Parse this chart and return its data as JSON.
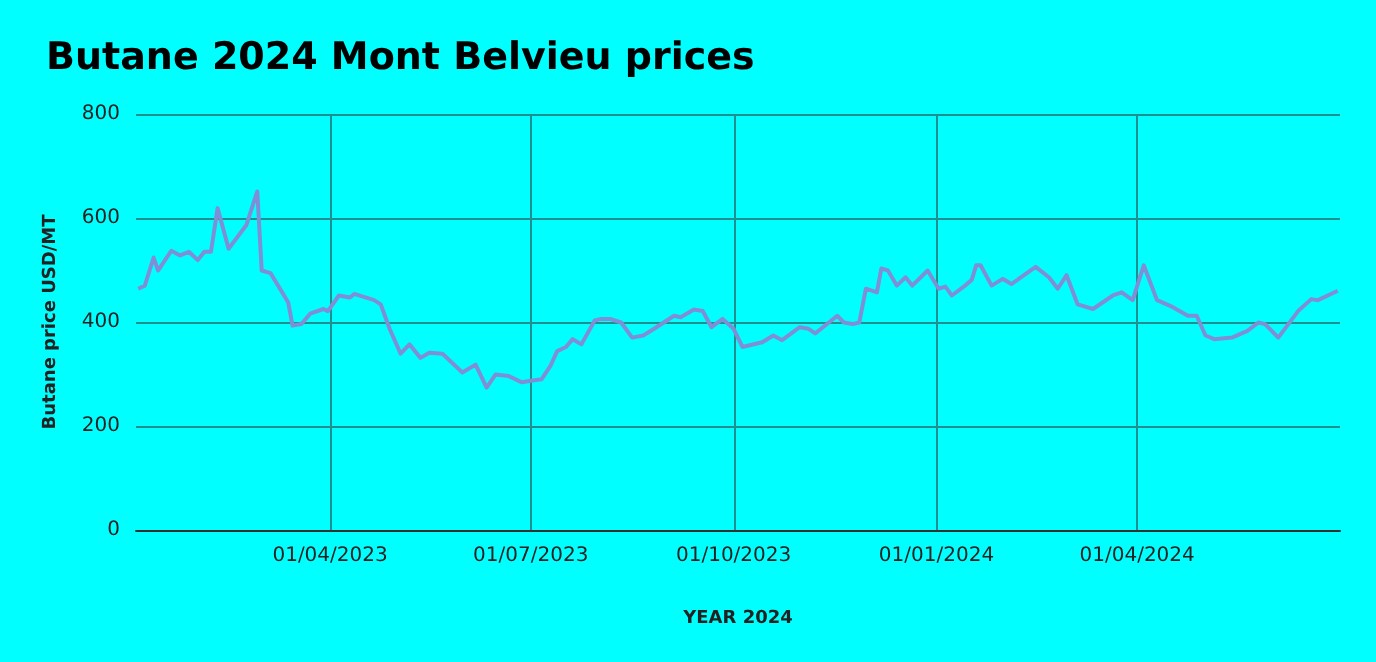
{
  "chart_data": {
    "type": "line",
    "title": "Butane 2024 Mont Belvieu prices",
    "xlabel": "YEAR 2024",
    "ylabel": "Butane price USD/MT",
    "xlim": [
      "2023-01-03",
      "2024-07-02"
    ],
    "xticks": [
      {
        "value": "2023-04-01",
        "label": "01/04/2023"
      },
      {
        "value": "2023-07-01",
        "label": "01/07/2023"
      },
      {
        "value": "2023-10-01",
        "label": "01/10/2023"
      },
      {
        "value": "2024-01-01",
        "label": "01/01/2024"
      },
      {
        "value": "2024-04-01",
        "label": "01/04/2024"
      }
    ],
    "ylim": [
      0,
      800
    ],
    "yticks": [
      0,
      200,
      400,
      600,
      800
    ],
    "grid": true,
    "marker": "none",
    "line_style": "solid",
    "x": [
      "2023-01-04",
      "2023-01-07",
      "2023-01-11",
      "2023-01-13",
      "2023-01-19",
      "2023-01-23",
      "2023-01-27",
      "2023-01-31",
      "2023-02-03",
      "2023-02-06",
      "2023-02-09",
      "2023-02-14",
      "2023-02-22",
      "2023-02-27",
      "2023-03-01",
      "2023-03-05",
      "2023-03-13",
      "2023-03-15",
      "2023-03-19",
      "2023-03-23",
      "2023-03-29",
      "2023-03-31",
      "2023-04-05",
      "2023-04-10",
      "2023-04-12",
      "2023-04-21",
      "2023-04-24",
      "2023-04-28",
      "2023-05-03",
      "2023-05-07",
      "2023-05-12",
      "2023-05-16",
      "2023-05-22",
      "2023-05-31",
      "2023-06-06",
      "2023-06-11",
      "2023-06-15",
      "2023-06-21",
      "2023-06-27",
      "2023-07-01",
      "2023-07-06",
      "2023-07-10",
      "2023-07-13",
      "2023-07-17",
      "2023-07-20",
      "2023-07-24",
      "2023-07-30",
      "2023-08-02",
      "2023-08-06",
      "2023-08-11",
      "2023-08-16",
      "2023-08-21",
      "2023-08-26",
      "2023-09-04",
      "2023-09-07",
      "2023-09-13",
      "2023-09-17",
      "2023-09-21",
      "2023-09-26",
      "2023-10-01",
      "2023-10-05",
      "2023-10-14",
      "2023-10-19",
      "2023-10-23",
      "2023-10-31",
      "2023-11-04",
      "2023-11-07",
      "2023-11-17",
      "2023-11-20",
      "2023-11-24",
      "2023-11-27",
      "2023-11-30",
      "2023-12-05",
      "2023-12-07",
      "2023-12-10",
      "2023-12-14",
      "2023-12-18",
      "2023-12-21",
      "2023-12-28",
      "2024-01-02",
      "2024-01-05",
      "2024-01-08",
      "2024-01-14",
      "2024-01-17",
      "2024-01-19",
      "2024-01-21",
      "2024-01-26",
      "2024-01-31",
      "2024-02-04",
      "2024-02-15",
      "2024-02-21",
      "2024-02-25",
      "2024-02-29",
      "2024-03-05",
      "2024-03-12",
      "2024-03-21",
      "2024-03-25",
      "2024-03-30",
      "2024-04-04",
      "2024-04-10",
      "2024-04-17",
      "2024-04-24",
      "2024-04-28",
      "2024-05-02",
      "2024-05-06",
      "2024-05-14",
      "2024-05-21",
      "2024-05-26",
      "2024-05-29",
      "2024-06-04",
      "2024-06-13",
      "2024-06-19",
      "2024-06-22",
      "2024-07-01"
    ],
    "series": [
      {
        "color": "#7f8fd6",
        "values": [
          464,
          470,
          524,
          499,
          537,
          528,
          535,
          519,
          535,
          535,
          619,
          541,
          586,
          651,
          499,
          494,
          438,
          393,
          396,
          416,
          425,
          421,
          451,
          447,
          454,
          442,
          434,
          387,
          339,
          357,
          331,
          341,
          339,
          303,
          318,
          274,
          299,
          296,
          284,
          287,
          290,
          316,
          344,
          352,
          367,
          357,
          403,
          406,
          406,
          399,
          370,
          374,
          387,
          412,
          409,
          424,
          421,
          390,
          406,
          387,
          352,
          361,
          374,
          365,
          390,
          387,
          378,
          412,
          399,
          396,
          399,
          464,
          457,
          503,
          499,
          470,
          486,
          470,
          499,
          464,
          468,
          451,
          470,
          481,
          509,
          509,
          470,
          483,
          473,
          506,
          486,
          464,
          490,
          434,
          425,
          451,
          457,
          442,
          509,
          442,
          429,
          412,
          412,
          374,
          367,
          370,
          383,
          399,
          396,
          370,
          421,
          444,
          442,
          460
        ]
      }
    ]
  }
}
